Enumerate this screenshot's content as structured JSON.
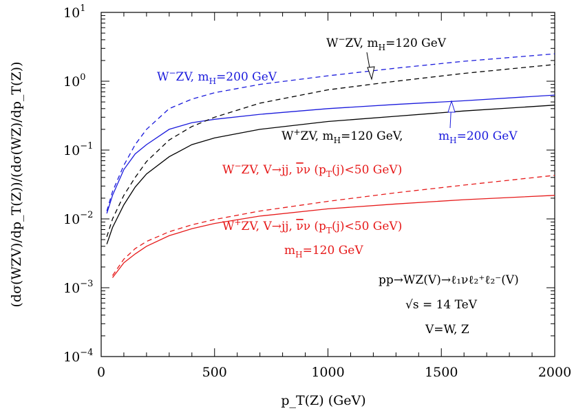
{
  "chart_data": {
    "type": "line",
    "title": "",
    "xlabel": "p_T(Z) (GeV)",
    "ylabel": "(dσ(WZV)/dp_T(Z))/(dσ(WZ)/dp_T(Z))",
    "xlim": [
      0,
      2000
    ],
    "ylim": [
      0.0001,
      10
    ],
    "yscale": "log",
    "grid": false,
    "x_ticks": [
      "0",
      "500",
      "1000",
      "1500",
      "2000"
    ],
    "y_ticks": [
      {
        "base": "10",
        "exp": "1"
      },
      {
        "base": "10",
        "exp": "0"
      },
      {
        "base": "10",
        "exp": "−1"
      },
      {
        "base": "10",
        "exp": "−2"
      },
      {
        "base": "10",
        "exp": "−3"
      },
      {
        "base": "10",
        "exp": "−4"
      }
    ],
    "colors": {
      "black": "#000000",
      "blue": "#1a1adc",
      "red": "#e61919"
    },
    "series": [
      {
        "color": "blue",
        "dash": true,
        "x": [
          25,
          50,
          100,
          150,
          200,
          300,
          400,
          500,
          700,
          1000,
          1300,
          1600,
          2000
        ],
        "y": [
          0.013,
          0.025,
          0.06,
          0.12,
          0.2,
          0.4,
          0.55,
          0.68,
          0.9,
          1.2,
          1.55,
          1.95,
          2.5
        ]
      },
      {
        "color": "blue",
        "dash": false,
        "x": [
          25,
          50,
          100,
          150,
          200,
          300,
          400,
          500,
          700,
          1000,
          1300,
          1600,
          2000
        ],
        "y": [
          0.012,
          0.022,
          0.052,
          0.088,
          0.12,
          0.2,
          0.25,
          0.28,
          0.33,
          0.4,
          0.46,
          0.52,
          0.63
        ]
      },
      {
        "color": "black",
        "dash": true,
        "x": [
          25,
          50,
          100,
          150,
          200,
          300,
          400,
          500,
          700,
          1000,
          1300,
          1600,
          2000
        ],
        "y": [
          0.0055,
          0.01,
          0.022,
          0.04,
          0.068,
          0.14,
          0.22,
          0.3,
          0.48,
          0.75,
          1.0,
          1.3,
          1.75
        ]
      },
      {
        "color": "black",
        "dash": false,
        "x": [
          25,
          50,
          100,
          150,
          200,
          300,
          400,
          500,
          700,
          1000,
          1300,
          1600,
          2000
        ],
        "y": [
          0.0043,
          0.0075,
          0.016,
          0.029,
          0.045,
          0.08,
          0.12,
          0.15,
          0.2,
          0.26,
          0.31,
          0.37,
          0.45
        ]
      },
      {
        "color": "red",
        "dash": true,
        "x": [
          50,
          100,
          150,
          200,
          300,
          400,
          500,
          700,
          1000,
          1300,
          1600,
          2000
        ],
        "y": [
          0.0015,
          0.0026,
          0.0037,
          0.0047,
          0.0065,
          0.0082,
          0.0098,
          0.013,
          0.018,
          0.024,
          0.031,
          0.043
        ]
      },
      {
        "color": "red",
        "dash": false,
        "x": [
          50,
          100,
          150,
          200,
          300,
          400,
          500,
          700,
          1000,
          1300,
          1600,
          2000
        ],
        "y": [
          0.0014,
          0.0023,
          0.0031,
          0.004,
          0.0057,
          0.0072,
          0.0086,
          0.011,
          0.014,
          0.0165,
          0.019,
          0.022
        ]
      }
    ],
    "annotations": [
      {
        "id": "wm120",
        "color": "black",
        "pre": "W",
        "sup": "−",
        "post": "ZV, m",
        "sub": "H",
        "tail": "=120 GeV"
      },
      {
        "id": "wm200",
        "color": "blue",
        "pre": "W",
        "sup": "−",
        "post": "ZV, m",
        "sub": "H",
        "tail": "=200 GeV"
      },
      {
        "id": "wp120",
        "color": "black",
        "pre": "W",
        "sup": "+",
        "post": "ZV, m",
        "sub": "H",
        "tail": "=120 GeV,"
      },
      {
        "id": "mh200",
        "color": "blue",
        "pre": "m",
        "sub": "H",
        "tail": "=200 GeV"
      },
      {
        "id": "wmjj",
        "color": "red",
        "pre": "W",
        "sup": "−",
        "post": "ZV, V→jj, ",
        "nubar": "ν",
        "nu": "ν (p",
        "sub": "T",
        "tail": "(j)<50 GeV)"
      },
      {
        "id": "wpjj",
        "color": "red",
        "pre": "W",
        "sup": "+",
        "post": "ZV, V→jj, ",
        "nubar": "ν",
        "nu": "ν (p",
        "sub": "T",
        "tail": "(j)<50 GeV)"
      },
      {
        "id": "mh120",
        "color": "red",
        "pre": "m",
        "sub": "H",
        "tail": "=120 GeV"
      }
    ],
    "info": {
      "process": "pp→WZ(V)→ℓ₁νℓ₂⁺ℓ₂⁻(V)",
      "sqrt_s": "√s = 14 TeV",
      "v": "V=W, Z"
    }
  }
}
